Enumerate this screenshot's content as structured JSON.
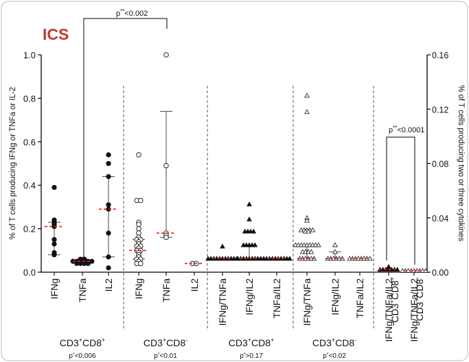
{
  "chart_data": {
    "type": "scatter",
    "title": "ICS",
    "title_color": "#c0392b",
    "ylabel_left": "% of T cells producing IFNg or TNFa or IL-2",
    "ylabel_right": "% of T cells producing two or three cytokines",
    "ylim_left": [
      0,
      1.0
    ],
    "ylim_right": [
      0,
      0.16
    ],
    "yticks_left": [
      "0.0",
      "0.2",
      "0.4",
      "0.6",
      "0.8",
      "1.0"
    ],
    "yticks_right": [
      "0.00",
      "0.04",
      "0.08",
      "0.12",
      "0.16"
    ],
    "median_color": "#e02020",
    "categories": [
      {
        "label": "IFNg",
        "axis": "left",
        "marker": "filled-circle",
        "median": 0.21,
        "whisker": [
          0.08,
          0.23
        ],
        "values": [
          0.39,
          0.24,
          0.23,
          0.22,
          0.21,
          0.15,
          0.13,
          0.09,
          0.08
        ]
      },
      {
        "label": "TNFa",
        "axis": "left",
        "marker": "filled-circle",
        "median": 0.05,
        "whisker": [
          0.04,
          0.06
        ],
        "values": [
          0.06,
          0.06,
          0.05,
          0.05,
          0.05,
          0.05,
          0.05,
          0.04,
          0.04,
          0.04,
          0.04,
          0.05
        ]
      },
      {
        "label": "IL2",
        "axis": "left",
        "marker": "filled-circle",
        "median": 0.29,
        "whisker": [
          0.07,
          0.44
        ],
        "values": [
          0.54,
          0.5,
          0.44,
          0.31,
          0.29,
          0.18,
          0.07,
          0.02
        ]
      },
      {
        "label": "IFNg",
        "axis": "left",
        "marker": "open-circle",
        "median": 0.1,
        "whisker": [
          0.06,
          0.15
        ],
        "values": [
          0.54,
          0.33,
          0.33,
          0.23,
          0.22,
          0.2,
          0.18,
          0.16,
          0.15,
          0.15,
          0.14,
          0.13,
          0.12,
          0.12,
          0.11,
          0.1,
          0.1,
          0.09,
          0.08,
          0.07,
          0.06,
          0.06,
          0.05,
          0.04,
          0.04
        ]
      },
      {
        "label": "TNFa",
        "axis": "left",
        "marker": "open-circle",
        "median": 0.18,
        "whisker": [
          0.16,
          0.74
        ],
        "values": [
          1.0,
          0.49,
          0.18,
          0.17,
          0.16
        ]
      },
      {
        "label": "IL2",
        "axis": "left",
        "marker": "open-circle",
        "median": 0.04,
        "whisker": null,
        "values": [
          0.04,
          0.04
        ]
      },
      {
        "label": "IFNg/TNFa",
        "axis": "right",
        "marker": "filled-triangle",
        "median": 0.01,
        "whisker": null,
        "values": [
          0.019,
          0.01,
          0.01,
          0.01,
          0.01,
          0.01,
          0.01,
          0.01,
          0.01,
          0.01,
          0.01,
          0.01
        ]
      },
      {
        "label": "IFNg/IL2",
        "axis": "right",
        "marker": "filled-triangle",
        "median": 0.01,
        "whisker": [
          0.01,
          0.02
        ],
        "values": [
          0.05,
          0.039,
          0.03,
          0.03,
          0.03,
          0.03,
          0.02,
          0.02,
          0.02,
          0.02,
          0.02,
          0.01,
          0.01,
          0.01,
          0.01,
          0.01,
          0.01,
          0.01,
          0.01,
          0.01
        ]
      },
      {
        "label": "TNFa/IL2",
        "axis": "right",
        "marker": "filled-triangle",
        "median": 0.01,
        "whisker": null,
        "values": [
          0.01,
          0.01,
          0.01,
          0.01,
          0.01,
          0.01,
          0.01,
          0.01,
          0.01,
          0.01
        ]
      },
      {
        "label": "IFNg/TNFa",
        "axis": "right",
        "marker": "open-triangle",
        "median": 0.01,
        "whisker": [
          0.01,
          0.02
        ],
        "values": [
          0.13,
          0.118,
          0.04,
          0.038,
          0.031,
          0.031,
          0.031,
          0.031,
          0.031,
          0.03,
          0.03,
          0.02,
          0.02,
          0.02,
          0.02,
          0.02,
          0.02,
          0.02,
          0.02,
          0.02,
          0.015,
          0.015,
          0.015,
          0.015,
          0.01,
          0.01,
          0.01,
          0.01,
          0.01,
          0.01
        ]
      },
      {
        "label": "IFNg/IL2",
        "axis": "right",
        "marker": "open-triangle",
        "median": 0.01,
        "whisker": [
          0.01,
          0.015
        ],
        "values": [
          0.02,
          0.015,
          0.01,
          0.01,
          0.01,
          0.01,
          0.01,
          0.01
        ]
      },
      {
        "label": "TNFa/IL2",
        "axis": "right",
        "marker": "open-triangle",
        "median": 0.01,
        "whisker": null,
        "values": [
          0.01,
          0.01,
          0.01,
          0.01,
          0.01,
          0.01,
          0.01,
          0.01
        ]
      },
      {
        "label": "IFNg/TNFa/IL2",
        "axis": "right",
        "marker": "filled-triangle",
        "median": 0.002,
        "whisker": null,
        "values": [
          0.004,
          0.002,
          0.002,
          0.002,
          0.002,
          0.002,
          0.002,
          0.002
        ]
      },
      {
        "label": "IFNg/TNFa/IL2",
        "axis": "right",
        "marker": "open-triangle",
        "median": 0.0008,
        "whisker": null,
        "values": [
          0.001,
          0.001,
          0.001,
          0.001,
          0.001,
          0.001,
          0.001,
          0.001,
          0.001
        ]
      }
    ],
    "groups": [
      {
        "label": "CD3",
        "sup1": "+",
        "mid": "CD8",
        "sup2": "+",
        "pval": "p",
        "pval_rest": "<0.006",
        "pstar": "*"
      },
      {
        "label": "CD3",
        "sup1": "+",
        "mid": "CD8",
        "sup2": "-",
        "pval": "p",
        "pval_rest": "<0.01",
        "pstar": "*"
      },
      {
        "label": "CD3",
        "sup1": "+",
        "mid": "CD8",
        "sup2": "+",
        "pval": "p",
        "pval_rest": ">0.17",
        "pstar": "*"
      },
      {
        "label": "CD3",
        "sup1": "+",
        "mid": "CD8",
        "sup2": "-",
        "pval": "p",
        "pval_rest": "<0.02",
        "pstar": "*"
      }
    ],
    "vertical_group_labels": [
      {
        "label": "CD3",
        "sup1": "+",
        "mid": "CD8",
        "sup2": "+"
      },
      {
        "label": "CD3",
        "sup1": "+",
        "mid": "CD8",
        "sup2": "-"
      }
    ],
    "brackets": [
      {
        "text": "p",
        "stars": "**",
        "rest": "<0.002"
      },
      {
        "text": "p",
        "stars": "**",
        "rest": "<0.0001"
      }
    ]
  }
}
